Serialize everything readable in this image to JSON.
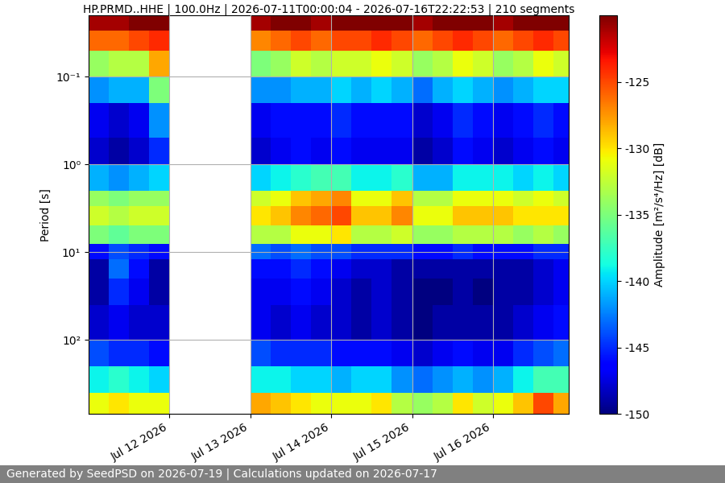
{
  "chart_data": {
    "type": "heatmap",
    "title": "HP.PRMD..HHE | 100.0Hz | 2026-07-11T00:00:04 - 2026-07-16T22:22:53 | 210 segments",
    "y_label": "Period [s]",
    "footer": "Generated by SeedPSD on 2026-07-19 | Calculations updated on 2026-07-17",
    "log": "y",
    "grid": true,
    "xlim": [
      "2026-07-11T00:00:04",
      "2026-07-16T22:22:53"
    ],
    "xticks": [
      {
        "value": "2026-07-12T00:00:00",
        "label": "Jul 12 2026"
      },
      {
        "value": "2026-07-13T00:00:00",
        "label": "Jul 13 2026"
      },
      {
        "value": "2026-07-14T00:00:00",
        "label": "Jul 14 2026"
      },
      {
        "value": "2026-07-15T00:00:00",
        "label": "Jul 15 2026"
      },
      {
        "value": "2026-07-16T00:00:00",
        "label": "Jul 16 2026"
      }
    ],
    "ylim": [
      700,
      0.02
    ],
    "yticks": [
      {
        "value": 0.1,
        "label": "10⁻¹"
      },
      {
        "value": 1,
        "label": "10⁰"
      },
      {
        "value": 10,
        "label": "10¹"
      },
      {
        "value": 100,
        "label": "10²"
      }
    ],
    "colorbar": {
      "label": "Amplitude [m²/s⁴/Hz] [dB]",
      "lim": [
        -150,
        -120
      ],
      "ticks": [
        -150,
        -145,
        -140,
        -135,
        -130,
        -125
      ]
    },
    "x_edges": [
      "2026-07-11T00:00:00",
      "2026-07-11T06:00:00",
      "2026-07-11T12:00:00",
      "2026-07-11T18:00:00",
      "2026-07-12T00:00:00",
      "2026-07-12T06:00:00",
      "2026-07-12T12:00:00",
      "2026-07-12T18:00:00",
      "2026-07-13T00:00:00",
      "2026-07-13T06:00:00",
      "2026-07-13T12:00:00",
      "2026-07-13T18:00:00",
      "2026-07-14T00:00:00",
      "2026-07-14T06:00:00",
      "2026-07-14T12:00:00",
      "2026-07-14T18:00:00",
      "2026-07-15T00:00:00",
      "2026-07-15T06:00:00",
      "2026-07-15T12:00:00",
      "2026-07-15T18:00:00",
      "2026-07-16T00:00:00",
      "2026-07-16T06:00:00",
      "2026-07-16T12:00:00",
      "2026-07-16T18:00:00",
      "2026-07-17T00:00:00"
    ],
    "y_edges": [
      0.02,
      0.03,
      0.05,
      0.1,
      0.2,
      0.5,
      1,
      2,
      3,
      5,
      8,
      12,
      20,
      40,
      100,
      200,
      400,
      700
    ],
    "cells": [
      [
        -121,
        -126,
        -134,
        -142,
        -147,
        -148,
        -141,
        -134,
        -132,
        -135,
        -146,
        -149,
        -149,
        -148,
        -144,
        -139,
        -131
      ],
      [
        -121,
        -126,
        -133,
        -141,
        -148,
        -149,
        -142,
        -135,
        -133,
        -136,
        -144,
        -143,
        -145,
        -147,
        -145,
        -138,
        -130
      ],
      [
        -120,
        -125,
        -133,
        -141,
        -147,
        -148,
        -141,
        -134,
        -132,
        -135,
        -145,
        -146,
        -147,
        -148,
        -145,
        -139,
        -131
      ],
      [
        -120,
        -124,
        -128,
        -135,
        -142,
        -145,
        -140,
        -134,
        -132,
        -135,
        -146,
        -149,
        -149,
        -148,
        -146,
        -140,
        -131
      ],
      null,
      null,
      null,
      null,
      [
        -121,
        -127,
        -135,
        -142,
        -147,
        -148,
        -140,
        -132,
        -130,
        -133,
        -143,
        -146,
        -147,
        -147,
        -144,
        -139,
        -128
      ],
      [
        -120,
        -126,
        -134,
        -142,
        -146,
        -147,
        -139,
        -131,
        -129,
        -133,
        -144,
        -146,
        -147,
        -148,
        -145,
        -139,
        -129
      ],
      [
        -120,
        -125,
        -132,
        -141,
        -146,
        -146,
        -138,
        -129,
        -127,
        -131,
        -143,
        -145,
        -146,
        -147,
        -145,
        -140,
        -130
      ],
      [
        -121,
        -126,
        -133,
        -141,
        -146,
        -147,
        -137,
        -128,
        -126,
        -131,
        -144,
        -146,
        -147,
        -148,
        -145,
        -140,
        -131
      ],
      [
        -120,
        -125,
        -132,
        -140,
        -145,
        -146,
        -137,
        -127,
        -125,
        -130,
        -144,
        -147,
        -148,
        -148,
        -146,
        -141,
        -131
      ],
      [
        -120,
        -125,
        -132,
        -141,
        -146,
        -147,
        -139,
        -131,
        -129,
        -133,
        -145,
        -148,
        -149,
        -149,
        -146,
        -140,
        -131
      ],
      [
        -120,
        -124,
        -131,
        -140,
        -146,
        -147,
        -139,
        -131,
        -129,
        -133,
        -145,
        -148,
        -148,
        -148,
        -146,
        -140,
        -130
      ],
      [
        -120,
        -125,
        -132,
        -141,
        -146,
        -147,
        -138,
        -129,
        -127,
        -132,
        -145,
        -149,
        -149,
        -149,
        -147,
        -142,
        -133
      ],
      [
        -121,
        -126,
        -134,
        -143,
        -148,
        -149,
        -141,
        -133,
        -131,
        -134,
        -146,
        -149,
        -150,
        -150,
        -148,
        -143,
        -134
      ],
      [
        -120,
        -125,
        -133,
        -141,
        -147,
        -148,
        -141,
        -133,
        -131,
        -134,
        -146,
        -149,
        -150,
        -149,
        -147,
        -142,
        -133
      ],
      [
        -120,
        -124,
        -131,
        -140,
        -145,
        -146,
        -139,
        -131,
        -129,
        -133,
        -145,
        -149,
        -149,
        -149,
        -146,
        -141,
        -130
      ],
      [
        -120,
        -125,
        -132,
        -141,
        -146,
        -147,
        -139,
        -131,
        -129,
        -133,
        -146,
        -149,
        -150,
        -149,
        -147,
        -142,
        -132
      ],
      [
        -121,
        -126,
        -134,
        -142,
        -147,
        -148,
        -139,
        -131,
        -129,
        -133,
        -146,
        -149,
        -149,
        -149,
        -147,
        -141,
        -131
      ],
      [
        -120,
        -125,
        -133,
        -141,
        -146,
        -147,
        -140,
        -132,
        -130,
        -134,
        -146,
        -149,
        -149,
        -148,
        -145,
        -139,
        -129
      ],
      [
        -120,
        -124,
        -131,
        -140,
        -145,
        -146,
        -139,
        -131,
        -130,
        -133,
        -145,
        -148,
        -148,
        -147,
        -144,
        -137,
        -125
      ],
      [
        -120,
        -125,
        -132,
        -140,
        -146,
        -147,
        -140,
        -132,
        -130,
        -134,
        -145,
        -147,
        -147,
        -146,
        -143,
        -137,
        -128
      ]
    ]
  }
}
